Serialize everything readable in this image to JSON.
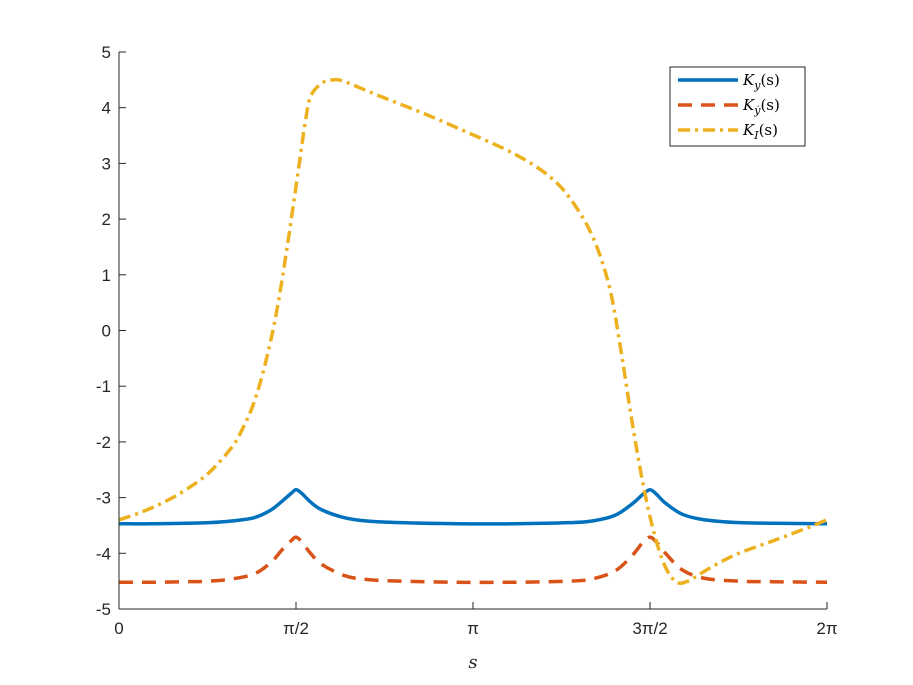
{
  "chart_data": {
    "type": "line",
    "xlabel": "s",
    "ylabel": "",
    "title": "",
    "xlim": [
      0,
      6.2832
    ],
    "ylim": [
      -5,
      5
    ],
    "grid": false,
    "legend_position": "top-right",
    "xticks": [
      {
        "value": 0,
        "label": "0"
      },
      {
        "value": 1.5708,
        "label": "π/2"
      },
      {
        "value": 3.1416,
        "label": "π"
      },
      {
        "value": 4.7124,
        "label": "3π/2"
      },
      {
        "value": 6.2832,
        "label": "2π"
      }
    ],
    "yticks": [
      {
        "value": -5,
        "label": "-5"
      },
      {
        "value": -4,
        "label": "-4"
      },
      {
        "value": -3,
        "label": "-3"
      },
      {
        "value": -2,
        "label": "-2"
      },
      {
        "value": -1,
        "label": "-1"
      },
      {
        "value": 0,
        "label": "0"
      },
      {
        "value": 1,
        "label": "1"
      },
      {
        "value": 2,
        "label": "2"
      },
      {
        "value": 3,
        "label": "3"
      },
      {
        "value": 4,
        "label": "4"
      },
      {
        "value": 5,
        "label": "5"
      }
    ],
    "series": [
      {
        "name": "K_y(s)",
        "legend_main": "K",
        "legend_sub": "y",
        "legend_rest": "(s)",
        "color": "#0072BD",
        "dash": "solid",
        "x": [
          0,
          0.3,
          0.6,
          0.8,
          1.0,
          1.2,
          1.35,
          1.45,
          1.53,
          1.5708,
          1.62,
          1.7,
          1.8,
          2.0,
          2.2,
          2.5,
          3.0,
          3.5,
          4.0,
          4.2,
          4.4,
          4.55,
          4.65,
          4.7124,
          4.77,
          4.85,
          5.0,
          5.2,
          5.5,
          5.8,
          6.2832
        ],
        "y": [
          -3.47,
          -3.47,
          -3.46,
          -3.45,
          -3.42,
          -3.36,
          -3.22,
          -3.06,
          -2.92,
          -2.86,
          -2.92,
          -3.08,
          -3.22,
          -3.36,
          -3.42,
          -3.45,
          -3.47,
          -3.47,
          -3.45,
          -3.42,
          -3.32,
          -3.12,
          -2.94,
          -2.86,
          -2.94,
          -3.1,
          -3.3,
          -3.4,
          -3.45,
          -3.46,
          -3.47
        ]
      },
      {
        "name": "K_ẏ(s)",
        "legend_main": "K",
        "legend_sub": "ẏ",
        "legend_rest": "(s)",
        "color": "#D95319",
        "dash": "dashed",
        "x": [
          0,
          0.3,
          0.6,
          0.8,
          1.0,
          1.2,
          1.35,
          1.45,
          1.53,
          1.5708,
          1.62,
          1.7,
          1.8,
          2.0,
          2.2,
          2.5,
          3.0,
          3.5,
          4.0,
          4.2,
          4.4,
          4.55,
          4.65,
          4.7124,
          4.77,
          4.85,
          5.0,
          5.2,
          5.5,
          5.8,
          6.2832
        ],
        "y": [
          -4.52,
          -4.52,
          -4.51,
          -4.5,
          -4.46,
          -4.37,
          -4.16,
          -3.93,
          -3.77,
          -3.71,
          -3.79,
          -4.0,
          -4.2,
          -4.4,
          -4.47,
          -4.5,
          -4.52,
          -4.52,
          -4.5,
          -4.46,
          -4.32,
          -4.05,
          -3.8,
          -3.71,
          -3.8,
          -4.0,
          -4.3,
          -4.45,
          -4.5,
          -4.51,
          -4.52
        ]
      },
      {
        "name": "K_I(s)",
        "legend_main": "K",
        "legend_sub": "I",
        "legend_rest": "(s)",
        "color": "#EDB120",
        "dash": "dashdot",
        "x": [
          0,
          0.2,
          0.4,
          0.6,
          0.8,
          1.0,
          1.1,
          1.2,
          1.3,
          1.4,
          1.5,
          1.6,
          1.65,
          1.7,
          1.8,
          1.9,
          2.0,
          2.3,
          2.7,
          3.1,
          3.5,
          3.8,
          4.0,
          4.2,
          4.35,
          4.45,
          4.55,
          4.65,
          4.75,
          4.85,
          4.95,
          5.05,
          5.15,
          5.3,
          5.5,
          5.8,
          6.1,
          6.2832
        ],
        "y": [
          -3.4,
          -3.26,
          -3.08,
          -2.85,
          -2.55,
          -2.1,
          -1.75,
          -1.28,
          -0.58,
          0.35,
          1.6,
          3.0,
          3.7,
          4.2,
          4.44,
          4.5,
          4.47,
          4.22,
          3.9,
          3.55,
          3.18,
          2.8,
          2.38,
          1.7,
          0.8,
          -0.3,
          -1.6,
          -2.75,
          -3.65,
          -4.25,
          -4.52,
          -4.5,
          -4.38,
          -4.2,
          -4.0,
          -3.78,
          -3.55,
          -3.4
        ]
      }
    ]
  }
}
